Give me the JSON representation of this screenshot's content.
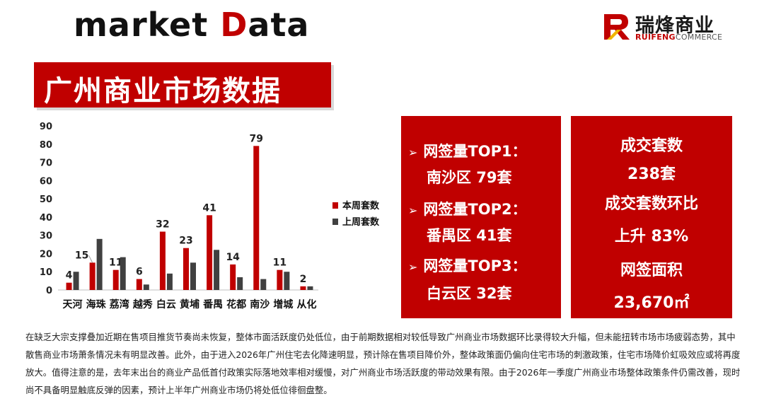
{
  "header": {
    "title_prefix": "market ",
    "title_accent": "D",
    "title_suffix": "ata"
  },
  "logo": {
    "cn": "瑞烽商业",
    "en_strong": "RUIFENG",
    "en_rest": "COMMERCE"
  },
  "banner": {
    "title": "广州商业市场数据"
  },
  "colors": {
    "this_week": "#c00000",
    "last_week": "#404040",
    "accent": "#c00000"
  },
  "chart_data": {
    "type": "bar",
    "categories": [
      "天河",
      "海珠",
      "荔湾",
      "越秀",
      "白云",
      "黄埔",
      "番禺",
      "花都",
      "南沙",
      "增城",
      "从化"
    ],
    "series": [
      {
        "name": "本周套数",
        "values": [
          4,
          15,
          11,
          6,
          32,
          23,
          41,
          14,
          79,
          11,
          2
        ],
        "color": "#c00000",
        "labeled": true
      },
      {
        "name": "上周套数",
        "values": [
          10,
          28,
          18,
          3,
          9,
          15,
          22,
          7,
          6,
          10,
          2
        ],
        "color": "#404040",
        "labeled": false
      }
    ],
    "yticks": [
      0,
      10,
      20,
      30,
      40,
      50,
      60,
      70,
      80,
      90
    ],
    "ylim": [
      0,
      90
    ],
    "title": "",
    "xlabel": "",
    "ylabel": "",
    "grid": false,
    "legend": "right"
  },
  "rankings": {
    "items": [
      {
        "label": "网签量TOP1：",
        "value": "南沙区 79套"
      },
      {
        "label": "网签量TOP2：",
        "value": "番禺区 41套"
      },
      {
        "label": "网签量TOP3：",
        "value": "白云区 32套"
      }
    ]
  },
  "stats": {
    "deals_label": "成交套数",
    "deals_value": "238套",
    "ratio_label": "成交套数环比",
    "ratio_value": "上升 83%",
    "area_label": "网签面积",
    "area_value": "23,670㎡"
  },
  "footer": {
    "note": "在缺乏大宗支撑叠加近期在售项目推货节奏尚未恢复，整体市面活跃度仍处低位，由于前期数据相对较低导致广州商业市场数据环比录得较大升幅，但未能扭转市场市场疲弱态势，其中散售商业市场萧条情况未有明显改善。此外，由于进入2026年广州住宅去化降速明显，预计除在售项目降价外，整体政策面仍偏向住宅市场的刺激政策，住宅市场降价虹吸效应或将再度放大。值得注意的是，去年末出台的商业产品低首付政策实际落地效率相对缓慢，对广州商业市场活跃度的带动效果有限。由于2026年一季度广州商业市场整体政策条件仍需改善，现时尚不具备明显触底反弹的因素，预计上半年广州商业市场仍将处低位徘徊盘整。"
  }
}
